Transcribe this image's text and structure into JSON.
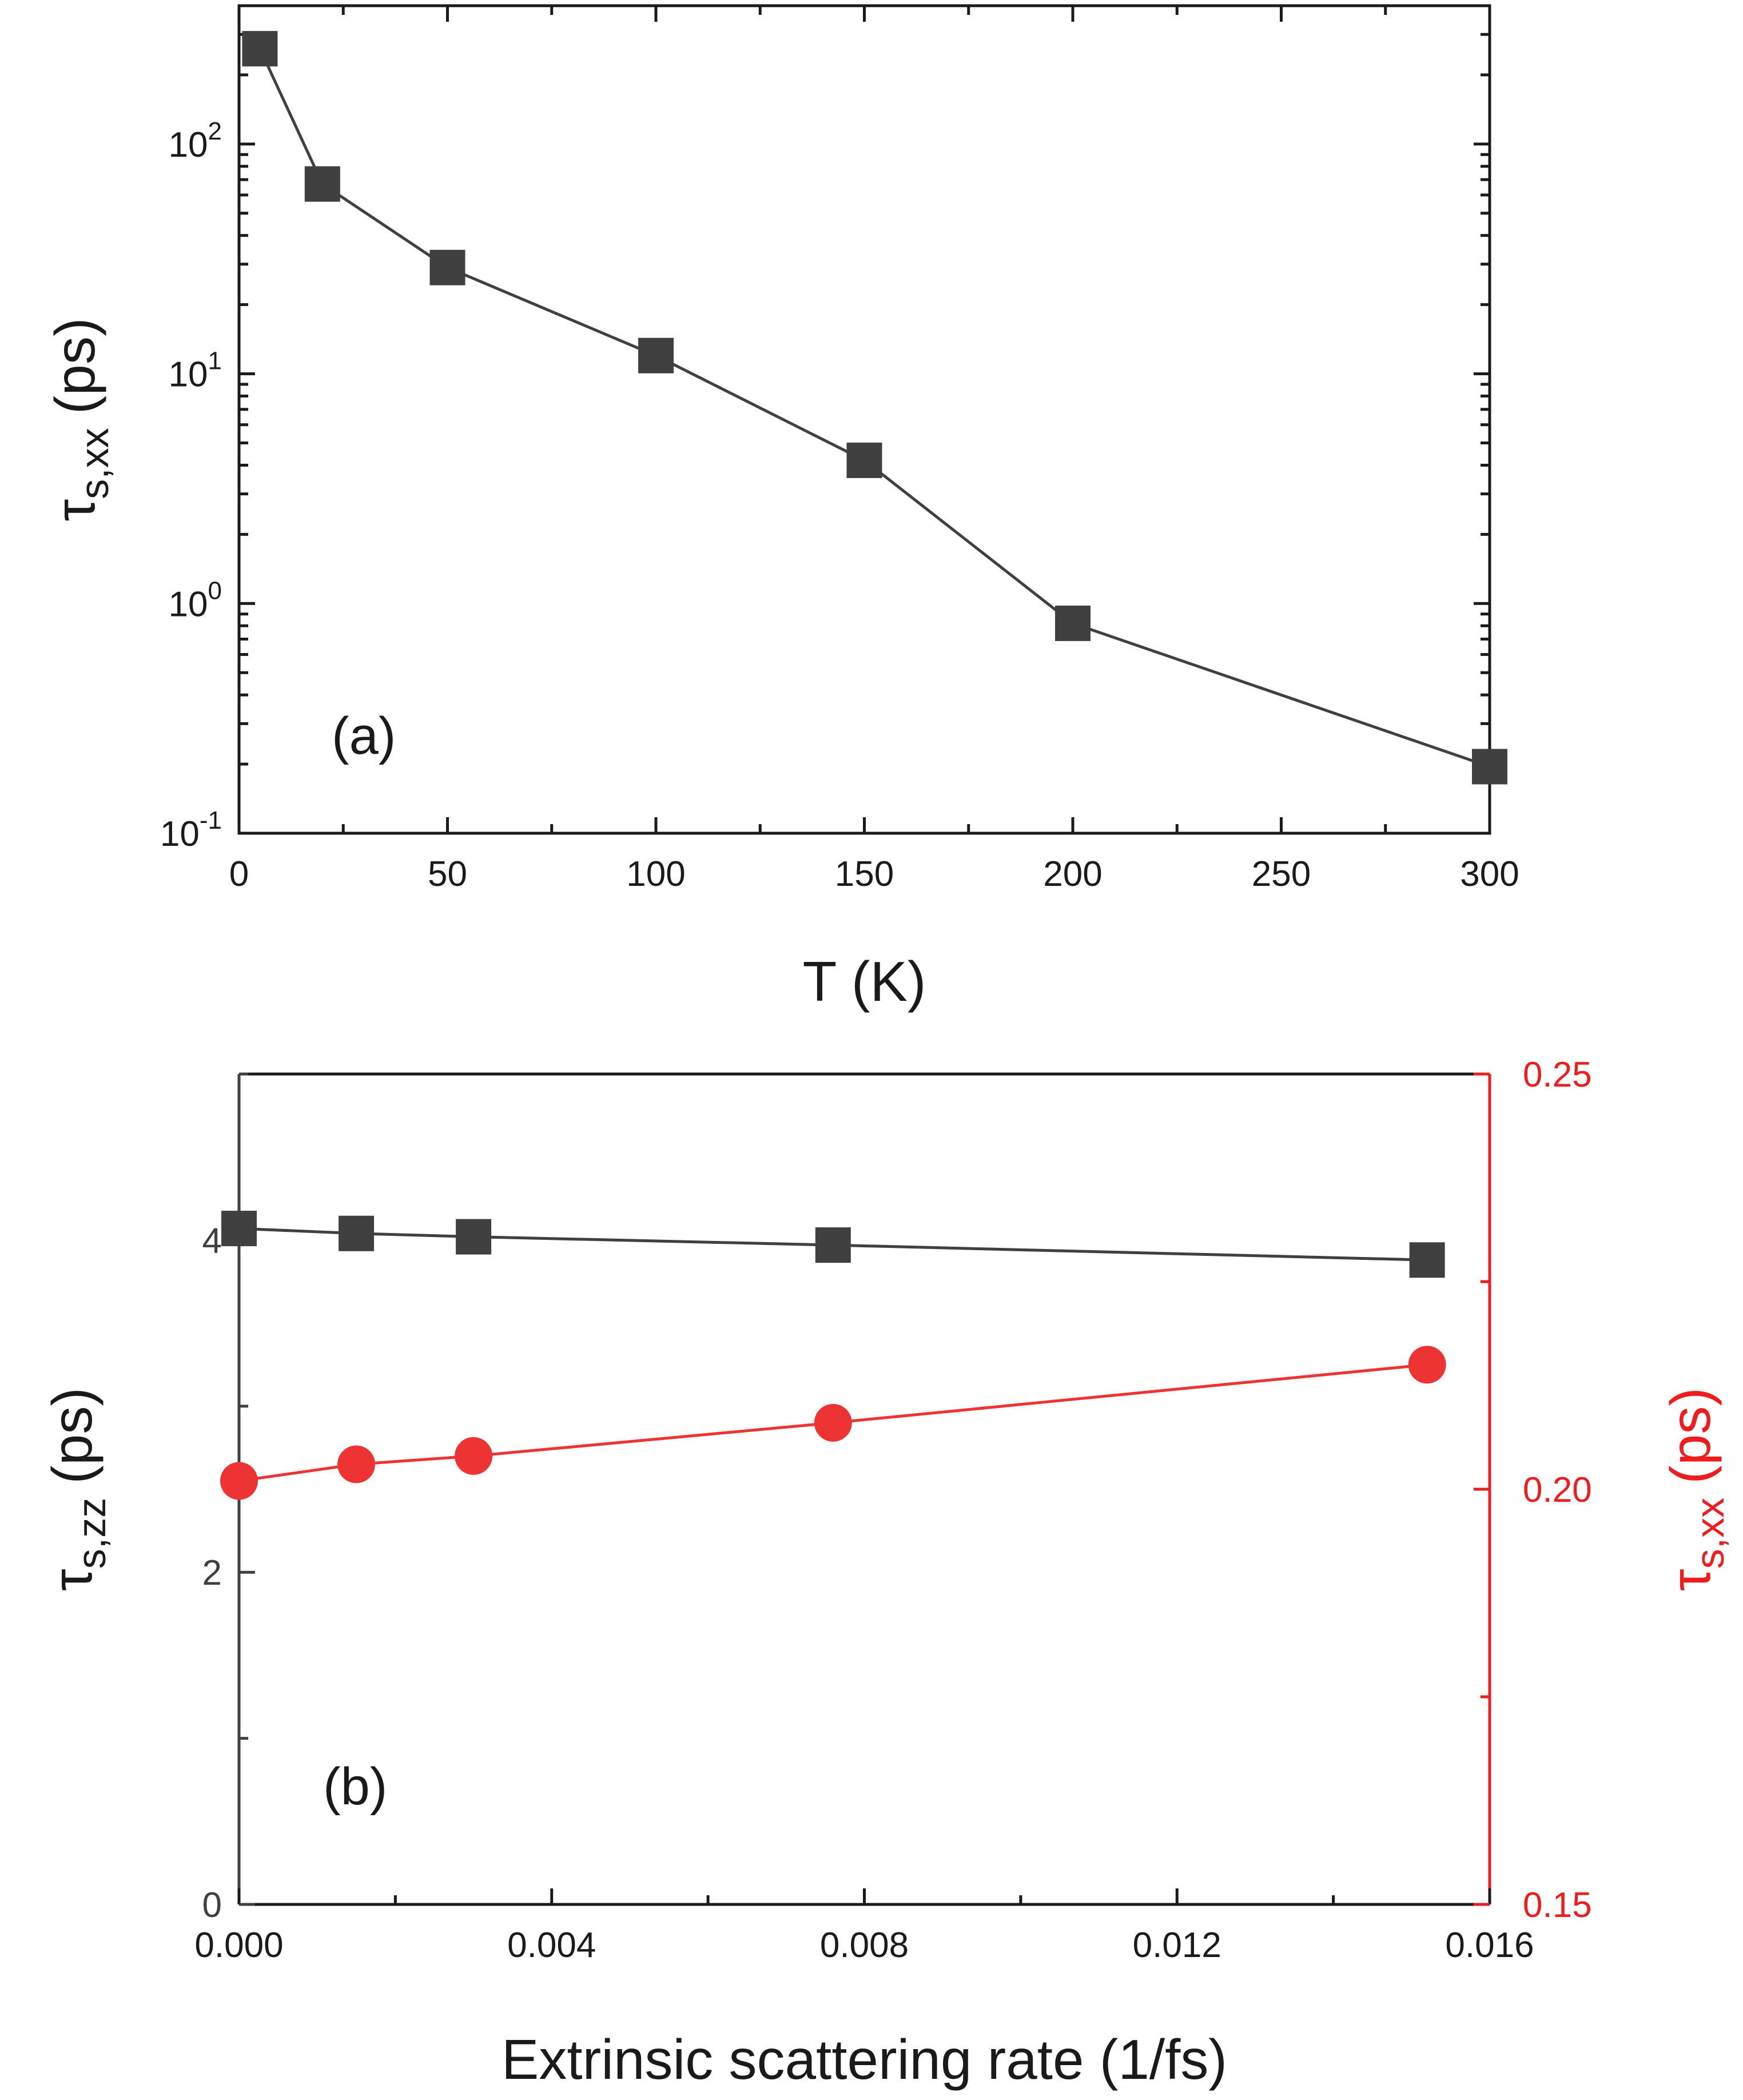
{
  "chart_data": [
    {
      "id": "a",
      "type": "line",
      "panel_label": "(a)",
      "xlabel": "T (K)",
      "ylabel_main": "τ",
      "ylabel_sub": "s,xx",
      "ylabel_unit": "(ps)",
      "yscale": "log",
      "xlim": [
        0,
        300
      ],
      "ylim": [
        0.1,
        400
      ],
      "xticks": [
        0,
        50,
        100,
        150,
        200,
        250,
        300
      ],
      "xtick_labels": [
        "0",
        "50",
        "100",
        "150",
        "200",
        "250",
        "300"
      ],
      "yticks": [
        0.1,
        1,
        10,
        100
      ],
      "ytick_labels": [
        {
          "base": "10",
          "exp": "-1"
        },
        {
          "base": "10",
          "exp": "0"
        },
        {
          "base": "10",
          "exp": "1"
        },
        {
          "base": "10",
          "exp": "2"
        }
      ],
      "series": [
        {
          "name": "τs,xx",
          "marker": "square",
          "color": "#404040",
          "x": [
            5,
            20,
            50,
            100,
            150,
            200,
            300
          ],
          "y": [
            260,
            67,
            29,
            12,
            4.2,
            0.82,
            0.195
          ]
        }
      ]
    },
    {
      "id": "b",
      "type": "line",
      "panel_label": "(b)",
      "xlabel": "Extrinsic scattering rate (1/fs)",
      "xlim": [
        0,
        0.016
      ],
      "xticks": [
        0,
        0.004,
        0.008,
        0.012,
        0.016
      ],
      "xtick_labels": [
        "0.000",
        "0.004",
        "0.008",
        "0.012",
        "0.016"
      ],
      "left_axis": {
        "label_main": "τ",
        "label_sub": "s,zz",
        "label_unit": "(ps)",
        "ylim": [
          0,
          5
        ],
        "yticks": [
          0,
          2,
          4
        ],
        "ytick_labels": [
          "0",
          "2",
          "4"
        ],
        "color": "#404040"
      },
      "right_axis": {
        "label_main": "τ",
        "label_sub": "s,xx",
        "label_unit": "(ps)",
        "ylim": [
          0.15,
          0.25
        ],
        "yticks": [
          0.15,
          0.2,
          0.25
        ],
        "ytick_labels": [
          "0.15",
          "0.20",
          "0.25"
        ],
        "color": "#ee1c1c"
      },
      "series": [
        {
          "name": "τs,zz",
          "axis": "left",
          "marker": "square",
          "color": "#404040",
          "x": [
            0,
            0.0015,
            0.003,
            0.0076,
            0.0152
          ],
          "y": [
            4.07,
            4.04,
            4.02,
            3.97,
            3.88
          ]
        },
        {
          "name": "τs,xx",
          "axis": "right",
          "marker": "circle",
          "color": "#ee3333",
          "x": [
            0,
            0.0015,
            0.003,
            0.0076,
            0.0152
          ],
          "y": [
            0.201,
            0.203,
            0.204,
            0.208,
            0.215
          ]
        }
      ]
    }
  ]
}
